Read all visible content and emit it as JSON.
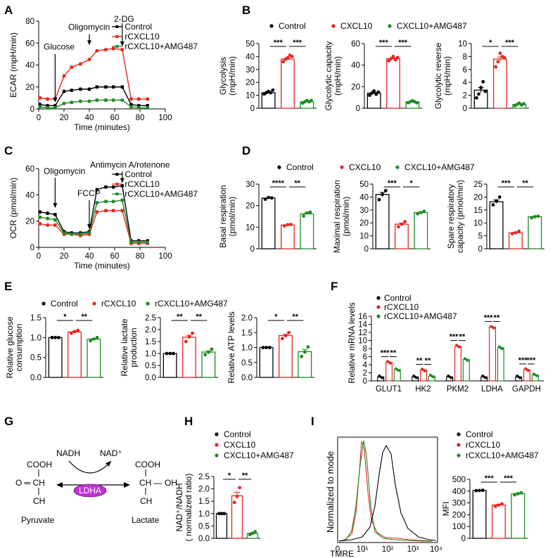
{
  "colors": {
    "control": "#000000",
    "cxcl10": "#e8251f",
    "amg": "#1f8a24",
    "ldha": "#c22fd8"
  },
  "panel_letters": [
    "A",
    "B",
    "C",
    "D",
    "E",
    "F",
    "G",
    "H",
    "I"
  ],
  "legend_B": [
    "Control",
    "CXCL10",
    "CXCL10+AMG487"
  ],
  "legend_D": [
    "Control",
    "CXCL10",
    "CXCL10+AMG487"
  ],
  "legend_E": [
    "Control",
    "rCXCL10",
    "rCXCL10+AMG487"
  ],
  "chart_data": [
    {
      "id": "A",
      "type": "line",
      "xlabel": "Time (minutes)",
      "ylabel": "ECAR (mpH/min)",
      "xlim": [
        0,
        100
      ],
      "ylim": [
        0,
        80
      ],
      "xticks": [
        "0",
        "20",
        "40",
        "60",
        "80",
        "100"
      ],
      "yticks": [
        "0",
        "20",
        "40",
        "60",
        "80"
      ],
      "legend": [
        "Control",
        "rCXCL10",
        "rCXCL10+AMG487"
      ],
      "annotations": [
        "Glucose",
        "Oligomycin",
        "2-DG"
      ],
      "x": [
        1,
        7,
        13,
        20,
        26,
        33,
        40,
        46,
        53,
        59,
        66,
        73,
        79,
        86
      ],
      "series": [
        {
          "name": "Control",
          "color": "#000000",
          "values": [
            4,
            3,
            3,
            16,
            17,
            18,
            18,
            20,
            20,
            20,
            20,
            4,
            3,
            3
          ]
        },
        {
          "name": "rCXCL10",
          "color": "#e8251f",
          "values": [
            10,
            9,
            9,
            30,
            38,
            41,
            45,
            53,
            54,
            55,
            54,
            9,
            9,
            9
          ]
        },
        {
          "name": "rCXCL10+AMG487",
          "color": "#1f8a24",
          "values": [
            2,
            1,
            1,
            5,
            6,
            7,
            7,
            8,
            8,
            8,
            8,
            2,
            1,
            1
          ]
        }
      ]
    },
    {
      "id": "B1",
      "type": "bar",
      "ylabel": "Glycolysis (mpH/min)",
      "ylim": [
        0,
        50
      ],
      "yticks": [
        "0",
        "10",
        "20",
        "30",
        "40",
        "50"
      ],
      "categories": [
        "Control",
        "CXCL10",
        "CXCL10+AMG487"
      ],
      "values": [
        12,
        38,
        5
      ],
      "points": [
        [
          11,
          12,
          13,
          12,
          14
        ],
        [
          36,
          38,
          39,
          41,
          40
        ],
        [
          4,
          5,
          6,
          5,
          6
        ]
      ],
      "significance": [
        "***",
        "***"
      ]
    },
    {
      "id": "B2",
      "type": "bar",
      "ylabel": "Glycolytic capacity (mpH/min)",
      "ylim": [
        0,
        60
      ],
      "yticks": [
        "0",
        "20",
        "40",
        "60"
      ],
      "categories": [
        "Control",
        "CXCL10",
        "CXCL10+AMG487"
      ],
      "values": [
        14,
        46,
        6
      ],
      "points": [
        [
          12,
          14,
          16,
          13,
          15
        ],
        [
          44,
          46,
          48,
          45,
          47
        ],
        [
          5,
          6,
          7,
          6,
          5
        ]
      ],
      "significance": [
        "***",
        "***"
      ]
    },
    {
      "id": "B3",
      "type": "bar",
      "ylabel": "Glycolytic reverse (mpH/min)",
      "ylim": [
        0,
        10
      ],
      "yticks": [
        "0",
        "2",
        "4",
        "6",
        "8",
        "10"
      ],
      "categories": [
        "Control",
        "CXCL10",
        "CXCL10+AMG487"
      ],
      "values": [
        2.8,
        7.6,
        0.6
      ],
      "points": [
        [
          1.6,
          2.2,
          3.2,
          4.1,
          2.6
        ],
        [
          6.4,
          7.2,
          8.5,
          8.0,
          7.8
        ],
        [
          0.4,
          0.6,
          0.8,
          0.5,
          0.7
        ]
      ],
      "significance": [
        "*",
        "***"
      ]
    },
    {
      "id": "C",
      "type": "line",
      "xlabel": "Time (minutes)",
      "ylabel": "OCR (pmol/min)",
      "xlim": [
        0,
        100
      ],
      "ylim": [
        0,
        60
      ],
      "xticks": [
        "0",
        "20",
        "40",
        "60",
        "80",
        "100"
      ],
      "yticks": [
        "0",
        "20",
        "40",
        "60"
      ],
      "legend": [
        "Control",
        "rCXCL10",
        "rCXCL10+AMG487"
      ],
      "annotations": [
        "Oligomycin",
        "FCCP",
        "Antimycin A/rotenone"
      ],
      "x": [
        1,
        7,
        13,
        20,
        26,
        33,
        40,
        46,
        53,
        59,
        66,
        73,
        79,
        86
      ],
      "series": [
        {
          "name": "Control",
          "color": "#000000",
          "values": [
            27,
            26,
            25,
            12,
            11,
            11,
            12,
            44,
            46,
            46,
            47,
            5,
            5,
            5
          ]
        },
        {
          "name": "rCXCL10",
          "color": "#e8251f",
          "values": [
            18,
            17,
            17,
            10,
            10,
            9,
            10,
            27,
            28,
            28,
            28,
            3,
            3,
            3
          ]
        },
        {
          "name": "rCXCL10+AMG487",
          "color": "#1f8a24",
          "values": [
            23,
            22,
            21,
            11,
            10,
            10,
            11,
            34,
            35,
            35,
            36,
            4,
            4,
            4
          ]
        }
      ]
    },
    {
      "id": "D1",
      "type": "bar",
      "ylabel": "Basal respiration (pmol/min)",
      "ylim": [
        0,
        30
      ],
      "yticks": [
        "0",
        "10",
        "20",
        "30"
      ],
      "categories": [
        "Control",
        "CXCL10",
        "CXCL10+AMG487"
      ],
      "values": [
        23.5,
        11,
        16.2
      ],
      "points": [
        [
          23,
          23.8,
          23.6
        ],
        [
          10.6,
          11.2,
          11.3
        ],
        [
          15.2,
          16.6,
          17.0
        ]
      ],
      "significance": [
        "****",
        "**"
      ]
    },
    {
      "id": "D2",
      "type": "bar",
      "ylabel": "Maximal respiration (pmol/min)",
      "ylim": [
        0,
        50
      ],
      "yticks": [
        "0",
        "10",
        "20",
        "30",
        "40",
        "50"
      ],
      "categories": [
        "Control",
        "CXCL10",
        "CXCL10+AMG487"
      ],
      "values": [
        42,
        19,
        28
      ],
      "points": [
        [
          38,
          42,
          45
        ],
        [
          17,
          19,
          21
        ],
        [
          27,
          28,
          29
        ]
      ],
      "significance": [
        "***",
        "*"
      ]
    },
    {
      "id": "D3",
      "type": "bar",
      "ylabel": "Spare respiratory capacity (pmol/min)",
      "ylim": [
        0,
        25
      ],
      "yticks": [
        "0",
        "5",
        "10",
        "15",
        "20",
        "25"
      ],
      "categories": [
        "Control",
        "CXCL10",
        "CXCL10+AMG487"
      ],
      "values": [
        18.2,
        6.2,
        12.4
      ],
      "points": [
        [
          17.0,
          18.5,
          20.0
        ],
        [
          5.8,
          6.2,
          6.8
        ],
        [
          12.0,
          12.4,
          12.6
        ]
      ],
      "significance": [
        "***",
        "**"
      ]
    },
    {
      "id": "E1",
      "type": "bar",
      "ylabel": "Relative glucose consumption",
      "ylim": [
        0,
        1.5
      ],
      "yticks": [
        "0.0",
        "0.5",
        "1.0",
        "1.5"
      ],
      "categories": [
        "Control",
        "rCXCL10",
        "rCXCL10+AMG487"
      ],
      "values": [
        1.0,
        1.14,
        0.96
      ],
      "points": [
        [
          1.0,
          1.0,
          1.0
        ],
        [
          1.11,
          1.15,
          1.18
        ],
        [
          0.92,
          0.96,
          1.0
        ]
      ],
      "significance": [
        "*",
        "**"
      ]
    },
    {
      "id": "E2",
      "type": "bar",
      "ylabel": "Relative lactate production",
      "ylim": [
        0,
        2.5
      ],
      "yticks": [
        "0.0",
        "0.5",
        "1.0",
        "1.5",
        "2.0",
        "2.5"
      ],
      "categories": [
        "Control",
        "rCXCL10",
        "rCXCL10+AMG487"
      ],
      "values": [
        1.0,
        1.68,
        1.06
      ],
      "points": [
        [
          1.0,
          1.0,
          1.0
        ],
        [
          1.5,
          1.7,
          1.85
        ],
        [
          0.95,
          1.05,
          1.18
        ]
      ],
      "significance": [
        "**",
        "**"
      ]
    },
    {
      "id": "E3",
      "type": "bar",
      "ylabel": "Relative ATP levels",
      "ylim": [
        0,
        2.0
      ],
      "yticks": [
        "0.0",
        "0.5",
        "1.0",
        "1.5",
        "2.0"
      ],
      "categories": [
        "Control",
        "rCXCL10",
        "rCXCL10+AMG487"
      ],
      "values": [
        1.0,
        1.4,
        0.86
      ],
      "points": [
        [
          1.0,
          1.0,
          1.0
        ],
        [
          1.3,
          1.4,
          1.5
        ],
        [
          0.7,
          0.85,
          1.02
        ]
      ],
      "significance": [
        "*",
        "**"
      ]
    },
    {
      "id": "F",
      "type": "bar",
      "ylabel": "Relative mRNA levels",
      "ylim": [
        0,
        16
      ],
      "yticks": [
        "0",
        "2",
        "4",
        "6",
        "8",
        "10",
        "12",
        "14",
        "16"
      ],
      "legend": [
        "Control",
        "rCXCL10",
        "rCXCL10+AMG487"
      ],
      "categories": [
        "GLUT1",
        "HK2",
        "PKM2",
        "LDHA",
        "GAPDH"
      ],
      "series": [
        {
          "name": "Control",
          "values": [
            1,
            1,
            1,
            1,
            1
          ]
        },
        {
          "name": "rCXCL10",
          "values": [
            4.6,
            2.7,
            8.6,
            13.3,
            2.8
          ]
        },
        {
          "name": "rCXCL10+AMG487",
          "values": [
            2.8,
            1.2,
            5.3,
            8.2,
            1.5
          ]
        }
      ],
      "significance": [
        [
          "***",
          "**"
        ],
        [
          "**",
          "**"
        ],
        [
          "***",
          "**"
        ],
        [
          "***",
          "**"
        ],
        [
          "***",
          "***"
        ]
      ]
    },
    {
      "id": "H",
      "type": "bar",
      "ylabel": "NAD+/NADH ( normalized ratio)",
      "ylim": [
        0,
        2.5
      ],
      "yticks": [
        "0.0",
        "0.5",
        "1.0",
        "1.5",
        "2.0",
        "2.5"
      ],
      "legend": [
        "Control",
        "CXCL10",
        "CXCL10+AMG487"
      ],
      "categories": [
        "Control",
        "CXCL10",
        "CXCL10+AMG487"
      ],
      "values": [
        1.0,
        1.72,
        0.2
      ],
      "points": [
        [
          1.0,
          1.0,
          1.0
        ],
        [
          1.45,
          1.7,
          2.05
        ],
        [
          0.15,
          0.2,
          0.27
        ]
      ],
      "significance": [
        "*",
        "**"
      ]
    },
    {
      "id": "I1",
      "type": "line",
      "xlabel": "TMRE",
      "ylabel": "Normalized to mode",
      "xticks": [
        "0",
        "10¹",
        "10²",
        "10³",
        "10⁴"
      ]
    },
    {
      "id": "I2",
      "type": "bar",
      "ylabel": "MFI",
      "ylim": [
        0,
        500
      ],
      "yticks": [
        "0",
        "100",
        "200",
        "300",
        "400",
        "500"
      ],
      "legend": [
        "Control",
        "rCXCL10",
        "rCXCL10+AMG487"
      ],
      "categories": [
        "Control",
        "rCXCL10",
        "rCXCL10+AMG487"
      ],
      "values": [
        405,
        282,
        378
      ],
      "points": [
        [
          404,
          405,
          407
        ],
        [
          270,
          282,
          292
        ],
        [
          368,
          378,
          386
        ]
      ],
      "significance": [
        "***",
        "***"
      ]
    }
  ],
  "diagram_G": {
    "left_acid": "COOH",
    "left_mid": "O ═ CH",
    "left_bottom": "CH",
    "left_name": "Pyruvate",
    "right_acid": "COOH",
    "right_mid": "CH — OH",
    "right_bottom": "CH",
    "right_name": "Lactate",
    "cofactor_in": "NADH",
    "cofactor_out": "NAD⁺",
    "enzyme": "LDHA"
  }
}
